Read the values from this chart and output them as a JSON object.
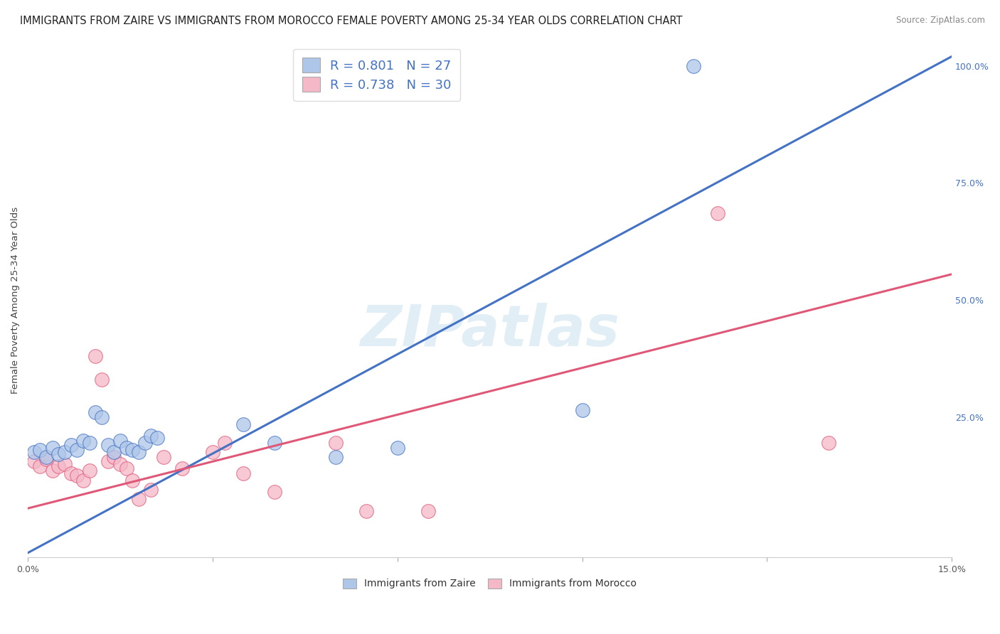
{
  "title": "IMMIGRANTS FROM ZAIRE VS IMMIGRANTS FROM MOROCCO FEMALE POVERTY AMONG 25-34 YEAR OLDS CORRELATION CHART",
  "source": "Source: ZipAtlas.com",
  "ylabel": "Female Poverty Among 25-34 Year Olds",
  "xlim": [
    0.0,
    0.15
  ],
  "ylim": [
    -0.05,
    1.05
  ],
  "xticks": [
    0.0,
    0.03,
    0.06,
    0.09,
    0.12,
    0.15
  ],
  "yticks_right": [
    0.0,
    0.25,
    0.5,
    0.75,
    1.0
  ],
  "yticklabels_right": [
    "",
    "25.0%",
    "50.0%",
    "75.0%",
    "100.0%"
  ],
  "zaire_color": "#aec6e8",
  "morocco_color": "#f4b8c8",
  "zaire_line_color": "#4472c4",
  "morocco_line_color": "#e05878",
  "zaire_R": 0.801,
  "zaire_N": 27,
  "morocco_R": 0.738,
  "morocco_N": 30,
  "watermark": "ZIPatlas",
  "background_color": "#ffffff",
  "zaire_scatter": [
    [
      0.001,
      0.175
    ],
    [
      0.002,
      0.18
    ],
    [
      0.003,
      0.165
    ],
    [
      0.004,
      0.185
    ],
    [
      0.005,
      0.17
    ],
    [
      0.006,
      0.175
    ],
    [
      0.007,
      0.19
    ],
    [
      0.008,
      0.18
    ],
    [
      0.009,
      0.2
    ],
    [
      0.01,
      0.195
    ],
    [
      0.011,
      0.26
    ],
    [
      0.012,
      0.25
    ],
    [
      0.013,
      0.19
    ],
    [
      0.014,
      0.175
    ],
    [
      0.015,
      0.2
    ],
    [
      0.016,
      0.185
    ],
    [
      0.017,
      0.18
    ],
    [
      0.018,
      0.175
    ],
    [
      0.019,
      0.195
    ],
    [
      0.02,
      0.21
    ],
    [
      0.021,
      0.205
    ],
    [
      0.035,
      0.235
    ],
    [
      0.04,
      0.195
    ],
    [
      0.05,
      0.165
    ],
    [
      0.06,
      0.185
    ],
    [
      0.09,
      0.265
    ],
    [
      0.108,
      1.0
    ]
  ],
  "morocco_scatter": [
    [
      0.001,
      0.155
    ],
    [
      0.002,
      0.145
    ],
    [
      0.003,
      0.16
    ],
    [
      0.004,
      0.135
    ],
    [
      0.005,
      0.145
    ],
    [
      0.006,
      0.15
    ],
    [
      0.007,
      0.13
    ],
    [
      0.008,
      0.125
    ],
    [
      0.009,
      0.115
    ],
    [
      0.01,
      0.135
    ],
    [
      0.011,
      0.38
    ],
    [
      0.012,
      0.33
    ],
    [
      0.013,
      0.155
    ],
    [
      0.014,
      0.165
    ],
    [
      0.015,
      0.15
    ],
    [
      0.016,
      0.14
    ],
    [
      0.017,
      0.115
    ],
    [
      0.018,
      0.075
    ],
    [
      0.02,
      0.095
    ],
    [
      0.022,
      0.165
    ],
    [
      0.025,
      0.14
    ],
    [
      0.03,
      0.175
    ],
    [
      0.032,
      0.195
    ],
    [
      0.035,
      0.13
    ],
    [
      0.04,
      0.09
    ],
    [
      0.05,
      0.195
    ],
    [
      0.055,
      0.05
    ],
    [
      0.065,
      0.05
    ],
    [
      0.112,
      0.685
    ],
    [
      0.13,
      0.195
    ]
  ],
  "zaire_line_x": [
    0.0,
    0.15
  ],
  "zaire_line_y": [
    -0.04,
    1.02
  ],
  "morocco_line_x": [
    0.0,
    0.15
  ],
  "morocco_line_y": [
    0.055,
    0.555
  ],
  "legend_color": "#4472c4",
  "title_fontsize": 10.5,
  "axis_label_fontsize": 9.5,
  "tick_fontsize": 9,
  "legend_fontsize": 13
}
